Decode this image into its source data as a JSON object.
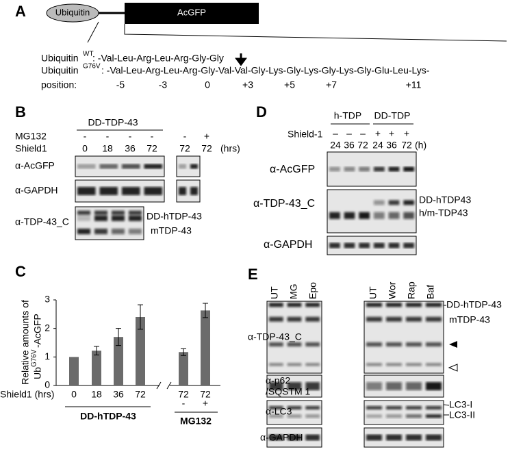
{
  "panel_a": {
    "letter": "A",
    "ubiquitin": "Ubiquitin",
    "acgfp": "AcGFP",
    "wt_name": "Ubiquitin",
    "wt_sup": "WT",
    "wt_seq": ": -Val-Leu-Arg-Leu-Arg-Gly-Gly",
    "mut_name": "Ubiquitin",
    "mut_sup": "G76V",
    "mut_seq": ": -Val-Leu-Arg-Leu-Arg-Gly-Val-Val-Gly-Lys-Gly-Lys-Gly-Lys-Gly-Glu-Leu-Lys-",
    "position_label": "position:",
    "positions": [
      "-5",
      "-3",
      "0",
      "+3",
      "+5",
      "+7",
      "+11"
    ]
  },
  "panel_b": {
    "letter": "B",
    "group": "DD-TDP-43",
    "mg132_label": "MG132",
    "mg132_signs": [
      "-",
      "-",
      "-",
      "-",
      "-",
      "+"
    ],
    "shield_label": "Shield1",
    "times": [
      "0",
      "18",
      "36",
      "72",
      "72",
      "72"
    ],
    "unit": "(hrs)",
    "blots": [
      "α-AcGFP",
      "α-GAPDH",
      "α-TDP-43_C"
    ],
    "band_labels": [
      "DD-hTDP-43",
      "mTDP-43"
    ]
  },
  "panel_d": {
    "letter": "D",
    "groups": [
      "h-TDP",
      "DD-TDP"
    ],
    "shield_label": "Shield-1",
    "signs": [
      "–",
      "–",
      "–",
      "+",
      "+",
      "+"
    ],
    "times": [
      "24",
      "36",
      "72",
      "24",
      "36",
      "72"
    ],
    "unit": "(h)",
    "blots": [
      "α-AcGFP",
      "α-TDP-43_C",
      "α-GAPDH"
    ],
    "band_labels": [
      "DD-hTDP43",
      "h/m-TDP43"
    ]
  },
  "panel_e": {
    "letter": "E",
    "lanes": [
      "UT",
      "MG",
      "Epo",
      "UT",
      "Wor",
      "Rap",
      "Baf"
    ],
    "blots": [
      "α-TDP-43_C",
      "α-p62",
      "/SQSTM 1",
      "α-LC3",
      "α-GAPDH"
    ],
    "band_labels": [
      "DD-hTDP-43",
      "mTDP-43",
      "LC3-I",
      "LC3-II"
    ]
  },
  "chart_data": {
    "type": "bar",
    "letter": "C",
    "ylabel": [
      "Relative amounts of",
      "Ub",
      "G76V",
      "-AcGFP"
    ],
    "xlabel": "Shield1 (hrs)",
    "categories": [
      "0",
      "18",
      "36",
      "72",
      "72",
      "72"
    ],
    "values": [
      1.0,
      1.22,
      1.7,
      2.4,
      1.17,
      2.63
    ],
    "errors": [
      0,
      0.15,
      0.3,
      0.43,
      0.12,
      0.25
    ],
    "signs": [
      "-",
      "+"
    ],
    "groups": [
      "DD-hTDP-43",
      "MG132"
    ],
    "color": "#6b6b6b",
    "ylim": [
      0,
      3
    ],
    "yticks": [
      0,
      1,
      2,
      3
    ]
  }
}
